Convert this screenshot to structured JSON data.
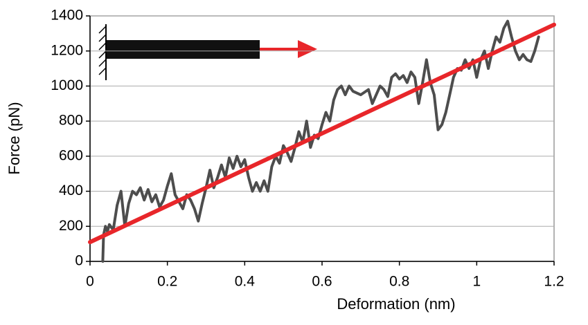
{
  "chart_data": {
    "type": "line",
    "xlabel": "Deformation (nm)",
    "ylabel": "Force (pN)",
    "xlim": [
      0,
      1.2
    ],
    "xticks": [
      0,
      0.2,
      0.4,
      0.6,
      0.8,
      1,
      1.2
    ],
    "ylim": [
      0,
      1400
    ],
    "yticks": [
      0,
      200,
      400,
      600,
      800,
      1000,
      1200,
      1400
    ],
    "grid": true,
    "series": [
      {
        "color": "#4d4d4d",
        "x": [
          0.033,
          0.035,
          0.04,
          0.045,
          0.05,
          0.06,
          0.07,
          0.08,
          0.085,
          0.09,
          0.1,
          0.11,
          0.12,
          0.13,
          0.14,
          0.15,
          0.16,
          0.17,
          0.18,
          0.19,
          0.2,
          0.21,
          0.22,
          0.24,
          0.25,
          0.26,
          0.27,
          0.28,
          0.29,
          0.3,
          0.31,
          0.32,
          0.33,
          0.34,
          0.35,
          0.36,
          0.37,
          0.38,
          0.39,
          0.4,
          0.41,
          0.42,
          0.43,
          0.44,
          0.45,
          0.46,
          0.47,
          0.48,
          0.49,
          0.5,
          0.51,
          0.52,
          0.53,
          0.54,
          0.55,
          0.56,
          0.57,
          0.58,
          0.59,
          0.6,
          0.61,
          0.62,
          0.63,
          0.64,
          0.65,
          0.66,
          0.67,
          0.68,
          0.7,
          0.72,
          0.73,
          0.74,
          0.75,
          0.76,
          0.77,
          0.78,
          0.79,
          0.8,
          0.81,
          0.82,
          0.83,
          0.84,
          0.85,
          0.86,
          0.87,
          0.88,
          0.89,
          0.9,
          0.91,
          0.92,
          0.93,
          0.94,
          0.95,
          0.96,
          0.97,
          0.98,
          0.99,
          1.0,
          1.01,
          1.02,
          1.03,
          1.04,
          1.05,
          1.06,
          1.07,
          1.08,
          1.09,
          1.1,
          1.11,
          1.12,
          1.13,
          1.14,
          1.15,
          1.16
        ],
        "values": [
          0,
          150,
          200,
          170,
          210,
          180,
          320,
          400,
          300,
          200,
          330,
          400,
          380,
          420,
          350,
          410,
          340,
          380,
          310,
          350,
          430,
          500,
          380,
          300,
          380,
          350,
          300,
          230,
          330,
          420,
          520,
          420,
          480,
          550,
          480,
          590,
          530,
          600,
          540,
          580,
          480,
          400,
          450,
          400,
          460,
          400,
          540,
          600,
          560,
          660,
          620,
          570,
          650,
          740,
          680,
          800,
          650,
          720,
          700,
          780,
          850,
          800,
          920,
          980,
          1000,
          950,
          1000,
          970,
          950,
          980,
          900,
          950,
          1000,
          980,
          940,
          1050,
          1070,
          1040,
          1060,
          1020,
          1080,
          1050,
          900,
          1020,
          1150,
          1020,
          950,
          750,
          780,
          850,
          950,
          1050,
          1100,
          1090,
          1150,
          1100,
          1150,
          1050,
          1150,
          1200,
          1100,
          1200,
          1280,
          1250,
          1330,
          1370,
          1280,
          1200,
          1150,
          1180,
          1150,
          1140,
          1200,
          1280
        ]
      },
      {
        "color": "#e8262a",
        "x": [
          0,
          1.2
        ],
        "values": [
          110,
          1350
        ]
      }
    ]
  }
}
